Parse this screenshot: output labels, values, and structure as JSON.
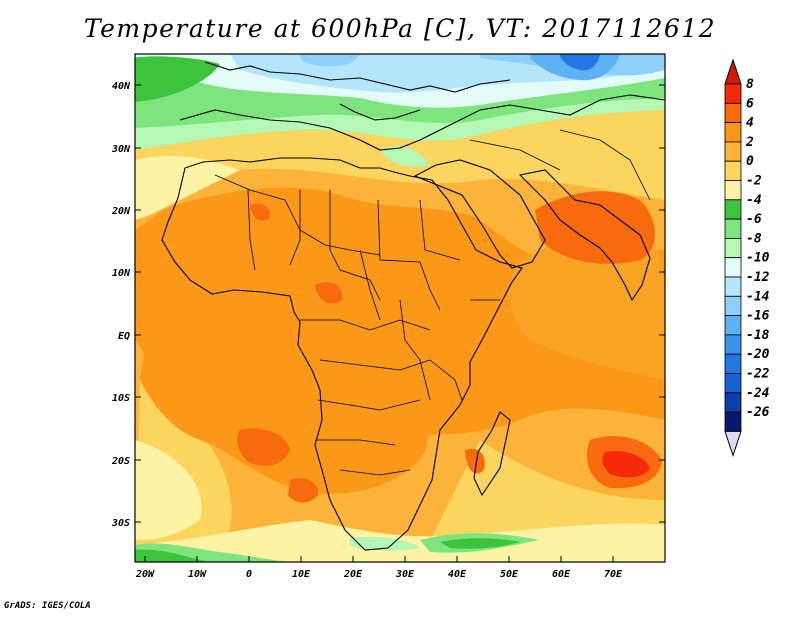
{
  "title": "Temperature at 600hPa [C], VT: 2017112612",
  "credit": "GrADS: IGES/COLA",
  "axes": {
    "lat_labels": [
      "40N",
      "30N",
      "20N",
      "10N",
      "EQ",
      "10S",
      "20S",
      "30S"
    ],
    "lon_labels": [
      "20W",
      "10W",
      "0",
      "10E",
      "20E",
      "30E",
      "40E",
      "50E",
      "60E",
      "70E"
    ]
  },
  "colorbar": {
    "levels": [
      "8",
      "6",
      "4",
      "2",
      "0",
      "-2",
      "-4",
      "-6",
      "-8",
      "-10",
      "-12",
      "-14",
      "-16",
      "-18",
      "-20",
      "-22",
      "-24",
      "-26"
    ],
    "colors": [
      "#f62a0a",
      "#f76a0d",
      "#fb9818",
      "#fbb33a",
      "#fcd55e",
      "#fef3a4",
      "#3dc43d",
      "#7ee57e",
      "#b5f7b5",
      "#e3fcf8",
      "#b4e6fb",
      "#8ed0f9",
      "#5eb1f4",
      "#3c91ec",
      "#2477e3",
      "#1861d4",
      "#0d3dab",
      "#041a70"
    ],
    "over_color": "#d41a05",
    "under_color": "#dcdcf8"
  }
}
